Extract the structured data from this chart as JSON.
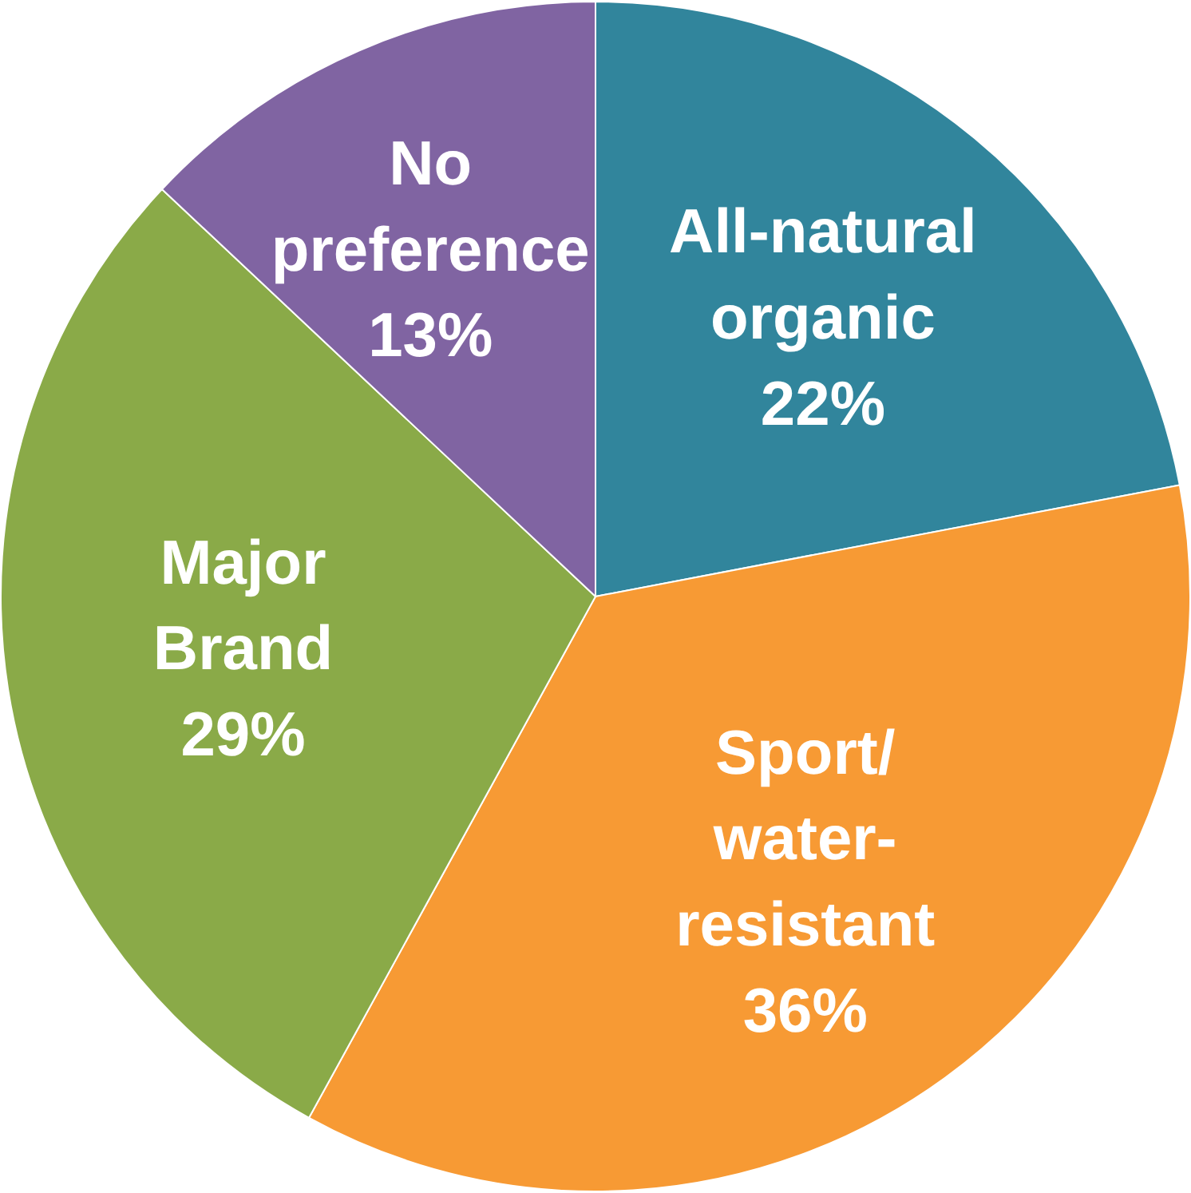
{
  "chart_data": {
    "type": "pie",
    "categories": [
      "All-natural organic",
      "Sport/water-resistant",
      "Major Brand",
      "No preference"
    ],
    "values": [
      22,
      36,
      29,
      13
    ],
    "colors": [
      "#31859c",
      "#f79a34",
      "#8aaa48",
      "#8064a2"
    ],
    "value_labels": [
      "22%",
      "36%",
      "29%",
      "13%"
    ]
  }
}
